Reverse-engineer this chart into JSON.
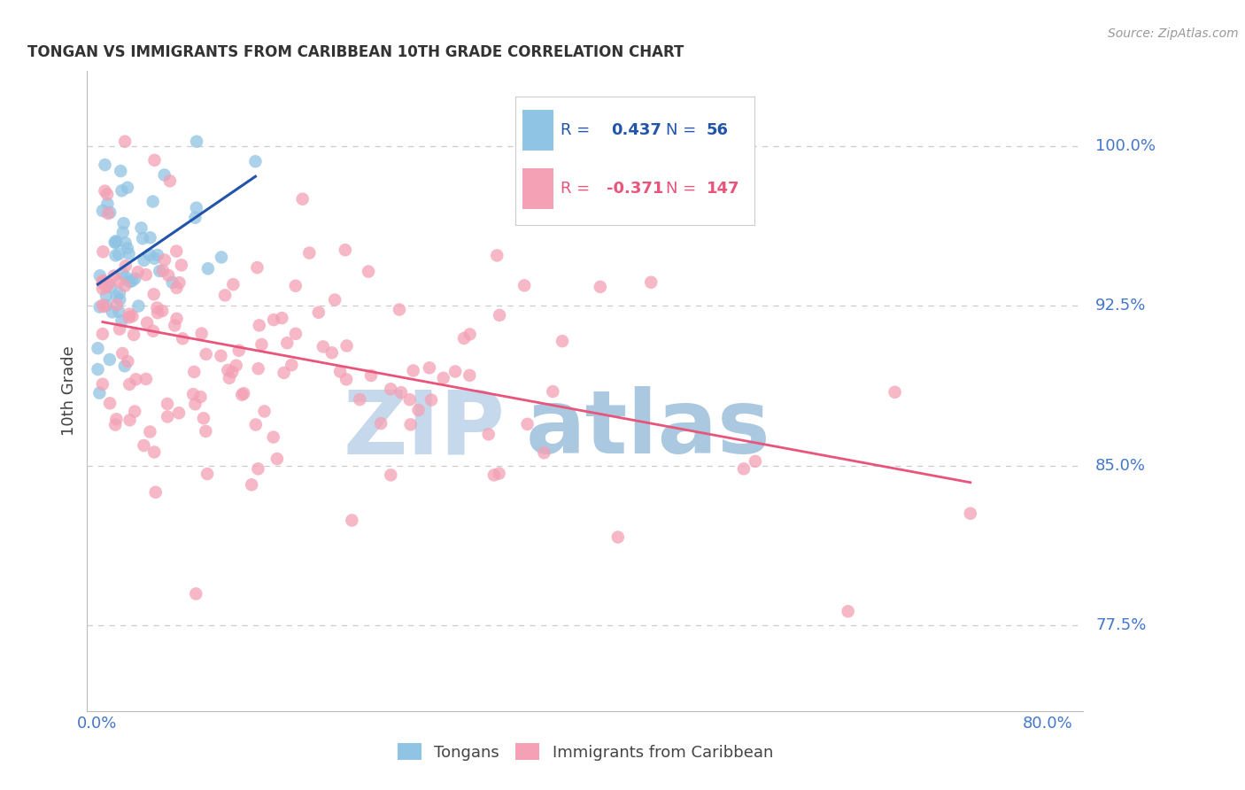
{
  "title": "TONGAN VS IMMIGRANTS FROM CARIBBEAN 10TH GRADE CORRELATION CHART",
  "source": "Source: ZipAtlas.com",
  "ylabel": "10th Grade",
  "ytick_labels": [
    "100.0%",
    "92.5%",
    "85.0%",
    "77.5%"
  ],
  "ytick_values": [
    1.0,
    0.925,
    0.85,
    0.775
  ],
  "ymin": 0.735,
  "ymax": 1.035,
  "xmin": -0.008,
  "xmax": 0.83,
  "blue_color": "#90c4e4",
  "pink_color": "#f4a0b5",
  "blue_line_color": "#2255aa",
  "pink_line_color": "#e8547a",
  "legend_blue_text_r": "#2255aa",
  "legend_blue_text_n": "#2255aa",
  "legend_pink_text_r": "#e8547a",
  "legend_pink_text_n": "#e8547a",
  "axis_color": "#4477cc",
  "grid_color": "#cccccc",
  "background": "#ffffff",
  "watermark_zip_color": "#c5d8ec",
  "watermark_atlas_color": "#aac8e0"
}
